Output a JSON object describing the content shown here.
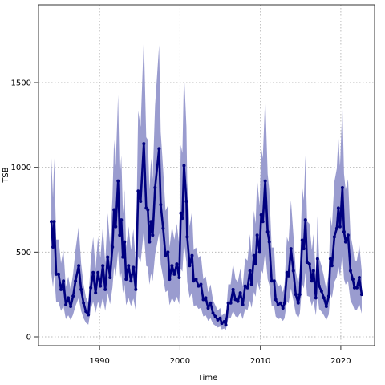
{
  "chart_data": {
    "type": "line",
    "xlabel": "Time",
    "ylabel": "TSB",
    "x": [
      1984.0,
      1984.2,
      1984.35,
      1984.6,
      1984.9,
      1985.2,
      1985.5,
      1985.8,
      1986.1,
      1986.4,
      1986.7,
      1987.0,
      1987.4,
      1987.7,
      1988.0,
      1988.3,
      1988.6,
      1988.9,
      1989.2,
      1989.5,
      1989.8,
      1990.1,
      1990.4,
      1990.7,
      1991.0,
      1991.3,
      1991.6,
      1991.8,
      1992.0,
      1992.3,
      1992.5,
      1992.7,
      1992.9,
      1993.1,
      1993.3,
      1993.6,
      1993.9,
      1994.2,
      1994.5,
      1994.8,
      1995.1,
      1995.5,
      1995.8,
      1996.0,
      1996.2,
      1996.4,
      1996.6,
      1996.9,
      1997.4,
      1997.6,
      1997.9,
      1998.2,
      1998.5,
      1998.7,
      1999.0,
      1999.3,
      1999.6,
      1999.9,
      2000.1,
      2000.3,
      2000.5,
      2000.8,
      2000.9,
      2001.2,
      2001.5,
      2001.7,
      2002.0,
      2002.3,
      2002.6,
      2002.9,
      2003.2,
      2003.5,
      2003.8,
      2004.1,
      2004.4,
      2004.7,
      2005.0,
      2005.2,
      2005.5,
      2005.7,
      2006.0,
      2006.3,
      2006.6,
      2006.9,
      2007.2,
      2007.5,
      2007.8,
      2008.1,
      2008.4,
      2008.7,
      2008.9,
      2009.2,
      2009.4,
      2009.6,
      2009.9,
      2010.1,
      2010.3,
      2010.6,
      2010.9,
      2011.1,
      2011.4,
      2011.7,
      2011.9,
      2012.2,
      2012.5,
      2012.8,
      2013.0,
      2013.3,
      2013.5,
      2013.8,
      2014.1,
      2014.4,
      2014.7,
      2014.9,
      2015.2,
      2015.4,
      2015.6,
      2015.8,
      2016.1,
      2016.4,
      2016.6,
      2016.9,
      2017.1,
      2017.3,
      2017.6,
      2017.9,
      2018.2,
      2018.5,
      2018.7,
      2018.9,
      2019.2,
      2019.5,
      2019.7,
      2019.9,
      2020.2,
      2020.4,
      2020.6,
      2020.9,
      2021.2,
      2021.5,
      2021.7,
      2022.0,
      2022.3,
      2022.6
    ],
    "series": [
      {
        "color": "#00007f",
        "values": [
          680,
          530,
          680,
          370,
          370,
          280,
          330,
          190,
          230,
          180,
          240,
          330,
          420,
          280,
          200,
          150,
          130,
          290,
          380,
          260,
          380,
          300,
          420,
          280,
          470,
          350,
          530,
          750,
          650,
          920,
          600,
          690,
          470,
          560,
          340,
          420,
          330,
          410,
          280,
          860,
          800,
          1140,
          760,
          750,
          560,
          680,
          600,
          880,
          1110,
          780,
          640,
          480,
          500,
          340,
          420,
          370,
          430,
          350,
          730,
          700,
          1010,
          800,
          590,
          420,
          480,
          330,
          340,
          300,
          310,
          220,
          230,
          170,
          200,
          140,
          120,
          100,
          110,
          80,
          90,
          70,
          200,
          200,
          280,
          220,
          210,
          260,
          190,
          300,
          290,
          390,
          310,
          480,
          430,
          600,
          500,
          720,
          680,
          920,
          620,
          560,
          330,
          330,
          220,
          190,
          200,
          170,
          200,
          380,
          360,
          520,
          390,
          250,
          200,
          250,
          570,
          520,
          690,
          440,
          430,
          330,
          390,
          230,
          460,
          300,
          270,
          230,
          180,
          240,
          460,
          420,
          590,
          640,
          760,
          650,
          880,
          620,
          560,
          600,
          390,
          340,
          290,
          290,
          350,
          250
        ]
      }
    ],
    "band": {
      "color": "#9a9ccf",
      "lower": [
        374,
        292,
        374,
        204,
        204,
        154,
        182,
        105,
        127,
        99,
        132,
        182,
        231,
        154,
        110,
        83,
        72,
        160,
        209,
        143,
        209,
        165,
        231,
        154,
        259,
        193,
        292,
        413,
        358,
        506,
        330,
        380,
        259,
        308,
        187,
        231,
        182,
        226,
        154,
        473,
        440,
        627,
        418,
        413,
        308,
        374,
        330,
        484,
        611,
        429,
        352,
        264,
        275,
        187,
        231,
        204,
        237,
        193,
        402,
        385,
        556,
        440,
        325,
        231,
        264,
        182,
        187,
        165,
        171,
        121,
        127,
        94,
        110,
        77,
        66,
        55,
        61,
        44,
        50,
        39,
        110,
        110,
        154,
        121,
        116,
        143,
        105,
        165,
        160,
        215,
        171,
        264,
        237,
        330,
        275,
        396,
        374,
        506,
        341,
        308,
        182,
        182,
        121,
        105,
        110,
        94,
        110,
        209,
        198,
        286,
        215,
        138,
        110,
        138,
        314,
        286,
        380,
        242,
        237,
        182,
        215,
        127,
        253,
        165,
        149,
        127,
        99,
        132,
        253,
        231,
        325,
        352,
        418,
        358,
        484,
        341,
        308,
        330,
        215,
        187,
        160,
        160,
        193,
        138
      ],
      "upper": [
        1054,
        822,
        1054,
        574,
        574,
        434,
        512,
        295,
        357,
        279,
        372,
        512,
        651,
        434,
        310,
        233,
        202,
        450,
        589,
        403,
        589,
        465,
        651,
        434,
        729,
        543,
        822,
        1163,
        1008,
        1426,
        930,
        1070,
        729,
        868,
        527,
        651,
        512,
        636,
        434,
        1333,
        1240,
        1767,
        1178,
        1163,
        868,
        1054,
        930,
        1364,
        1721,
        1209,
        992,
        744,
        775,
        527,
        651,
        574,
        667,
        543,
        1132,
        1085,
        1566,
        1240,
        915,
        651,
        744,
        512,
        527,
        465,
        481,
        341,
        357,
        264,
        310,
        217,
        186,
        155,
        171,
        124,
        140,
        109,
        310,
        310,
        434,
        341,
        326,
        403,
        295,
        465,
        450,
        605,
        481,
        744,
        667,
        930,
        775,
        1116,
        1054,
        1426,
        961,
        868,
        527,
        527,
        341,
        295,
        310,
        264,
        310,
        589,
        558,
        806,
        605,
        388,
        310,
        388,
        884,
        806,
        1070,
        682,
        667,
        512,
        605,
        357,
        713,
        465,
        419,
        357,
        279,
        372,
        713,
        651,
        915,
        992,
        1178,
        1008,
        1364,
        961,
        868,
        930,
        605,
        527,
        450,
        450,
        543,
        388
      ]
    },
    "xlim": [
      1982.4,
      2024.2
    ],
    "ylim": [
      -52,
      1959
    ],
    "xticks": [
      1990,
      2000,
      2010,
      2020
    ],
    "yticks": [
      0,
      500,
      1000,
      1500
    ],
    "grid": true
  }
}
